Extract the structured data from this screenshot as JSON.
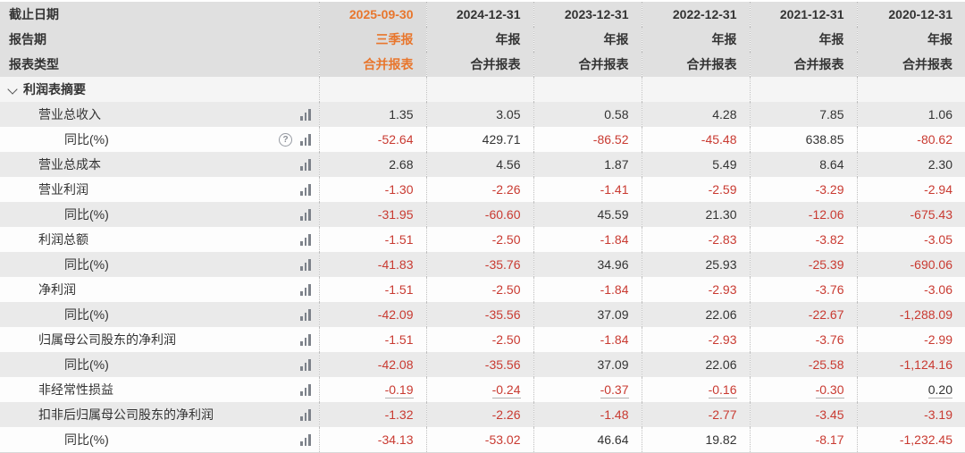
{
  "colors": {
    "accent_orange": "#e8762d",
    "negative_red": "#c93a31",
    "header_bg": "#e0e0e0",
    "stripe_gray": "#eaeaea",
    "stripe_white": "#fdfdfd",
    "text": "#333333",
    "icon_gray": "#7d828a"
  },
  "header": {
    "row_labels": [
      "截止日期",
      "报告期",
      "报表类型"
    ],
    "columns": [
      {
        "date": "2025-09-30",
        "period": "三季报",
        "report_type": "合并报表",
        "current": true
      },
      {
        "date": "2024-12-31",
        "period": "年报",
        "report_type": "合并报表",
        "current": false
      },
      {
        "date": "2023-12-31",
        "period": "年报",
        "report_type": "合并报表",
        "current": false
      },
      {
        "date": "2022-12-31",
        "period": "年报",
        "report_type": "合并报表",
        "current": false
      },
      {
        "date": "2021-12-31",
        "period": "年报",
        "report_type": "合并报表",
        "current": false
      },
      {
        "date": "2020-12-31",
        "period": "年报",
        "report_type": "合并报表",
        "current": false
      }
    ]
  },
  "section": {
    "title": "利润表摘要",
    "state": "expanded"
  },
  "rows": [
    {
      "label": "营业总收入",
      "sub": false,
      "help": false,
      "underline": false,
      "values": [
        "1.35",
        "3.05",
        "0.58",
        "4.28",
        "7.85",
        "1.06"
      ]
    },
    {
      "label": "同比(%)",
      "sub": true,
      "help": true,
      "underline": false,
      "values": [
        "-52.64",
        "429.71",
        "-86.52",
        "-45.48",
        "638.85",
        "-80.62"
      ]
    },
    {
      "label": "营业总成本",
      "sub": false,
      "help": false,
      "underline": false,
      "values": [
        "2.68",
        "4.56",
        "1.87",
        "5.49",
        "8.64",
        "2.30"
      ]
    },
    {
      "label": "营业利润",
      "sub": false,
      "help": false,
      "underline": false,
      "values": [
        "-1.30",
        "-2.26",
        "-1.41",
        "-2.59",
        "-3.29",
        "-2.94"
      ]
    },
    {
      "label": "同比(%)",
      "sub": true,
      "help": false,
      "underline": false,
      "values": [
        "-31.95",
        "-60.60",
        "45.59",
        "21.30",
        "-12.06",
        "-675.43"
      ]
    },
    {
      "label": "利润总额",
      "sub": false,
      "help": false,
      "underline": false,
      "values": [
        "-1.51",
        "-2.50",
        "-1.84",
        "-2.83",
        "-3.82",
        "-3.05"
      ]
    },
    {
      "label": "同比(%)",
      "sub": true,
      "help": false,
      "underline": false,
      "values": [
        "-41.83",
        "-35.76",
        "34.96",
        "25.93",
        "-25.39",
        "-690.06"
      ]
    },
    {
      "label": "净利润",
      "sub": false,
      "help": false,
      "underline": false,
      "values": [
        "-1.51",
        "-2.50",
        "-1.84",
        "-2.93",
        "-3.76",
        "-3.06"
      ]
    },
    {
      "label": "同比(%)",
      "sub": true,
      "help": false,
      "underline": false,
      "values": [
        "-42.09",
        "-35.56",
        "37.09",
        "22.06",
        "-22.67",
        "-1,288.09"
      ]
    },
    {
      "label": "归属母公司股东的净利润",
      "sub": false,
      "help": false,
      "underline": false,
      "values": [
        "-1.51",
        "-2.50",
        "-1.84",
        "-2.93",
        "-3.76",
        "-2.99"
      ]
    },
    {
      "label": "同比(%)",
      "sub": true,
      "help": false,
      "underline": false,
      "values": [
        "-42.08",
        "-35.56",
        "37.09",
        "22.06",
        "-25.58",
        "-1,124.16"
      ]
    },
    {
      "label": "非经常性损益",
      "sub": false,
      "help": false,
      "underline": true,
      "values": [
        "-0.19",
        "-0.24",
        "-0.37",
        "-0.16",
        "-0.30",
        "0.20"
      ]
    },
    {
      "label": "扣非后归属母公司股东的净利润",
      "sub": false,
      "help": false,
      "underline": false,
      "values": [
        "-1.32",
        "-2.26",
        "-1.48",
        "-2.77",
        "-3.45",
        "-3.19"
      ]
    },
    {
      "label": "同比(%)",
      "sub": true,
      "help": false,
      "underline": false,
      "values": [
        "-34.13",
        "-53.02",
        "46.64",
        "19.82",
        "-8.17",
        "-1,232.45"
      ]
    }
  ]
}
